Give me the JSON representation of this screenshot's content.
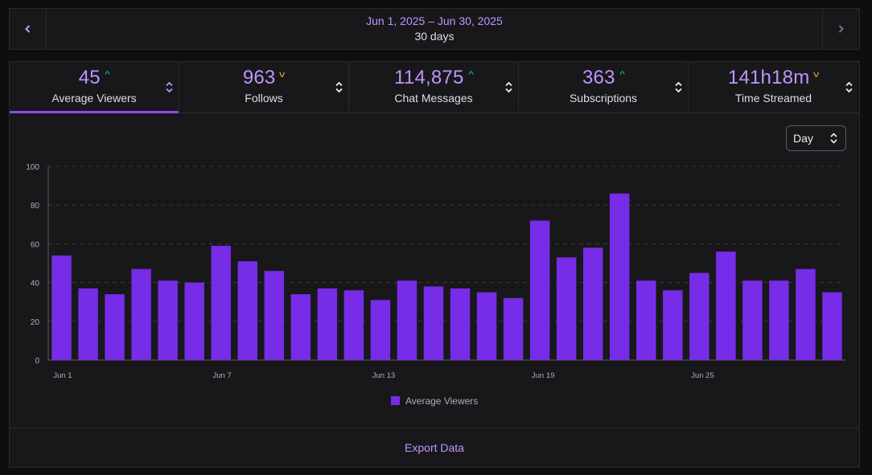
{
  "date_nav": {
    "range": "Jun 1, 2025 – Jun 30, 2025",
    "days": "30 days",
    "prev_icon": "chevron-left-icon",
    "next_icon": "chevron-right-icon"
  },
  "tabs": [
    {
      "value": "45",
      "label": "Average Viewers",
      "trend": "up"
    },
    {
      "value": "963",
      "label": "Follows",
      "trend": "down"
    },
    {
      "value": "114,875",
      "label": "Chat Messages",
      "trend": "up"
    },
    {
      "value": "363",
      "label": "Subscriptions",
      "trend": "up"
    },
    {
      "value": "141h18m",
      "label": "Time Streamed",
      "trend": "down"
    }
  ],
  "interval_select": {
    "value": "Day"
  },
  "footer": {
    "export_label": "Export Data"
  },
  "colors": {
    "accent": "#bf94ff",
    "bar": "#772ce8",
    "up": "#00d6a0",
    "down": "#f5a623"
  },
  "chart_data": {
    "type": "bar",
    "title": "",
    "xlabel": "",
    "ylabel": "",
    "ylim": [
      0,
      100
    ],
    "yticks": [
      0,
      20,
      40,
      60,
      80,
      100
    ],
    "grid": true,
    "legend_position": "bottom",
    "categories": [
      "Jun 1",
      "Jun 2",
      "Jun 3",
      "Jun 4",
      "Jun 5",
      "Jun 6",
      "Jun 7",
      "Jun 8",
      "Jun 9",
      "Jun 10",
      "Jun 11",
      "Jun 12",
      "Jun 13",
      "Jun 14",
      "Jun 15",
      "Jun 16",
      "Jun 17",
      "Jun 18",
      "Jun 19",
      "Jun 20",
      "Jun 21",
      "Jun 22",
      "Jun 23",
      "Jun 24",
      "Jun 25",
      "Jun 26",
      "Jun 27",
      "Jun 28",
      "Jun 29",
      "Jun 30"
    ],
    "tick_labels": [
      "Jun 1",
      "",
      "",
      "",
      "",
      "",
      "Jun 7",
      "",
      "",
      "",
      "",
      "",
      "Jun 13",
      "",
      "",
      "",
      "",
      "",
      "Jun 19",
      "",
      "",
      "",
      "",
      "",
      "Jun 25",
      "",
      "",
      "",
      "",
      ""
    ],
    "series": [
      {
        "name": "Average Viewers",
        "values": [
          54,
          37,
          34,
          47,
          41,
          40,
          59,
          51,
          46,
          34,
          37,
          36,
          31,
          41,
          38,
          37,
          35,
          32,
          72,
          53,
          58,
          86,
          41,
          36,
          45,
          56,
          41,
          41,
          47,
          35
        ]
      }
    ]
  }
}
